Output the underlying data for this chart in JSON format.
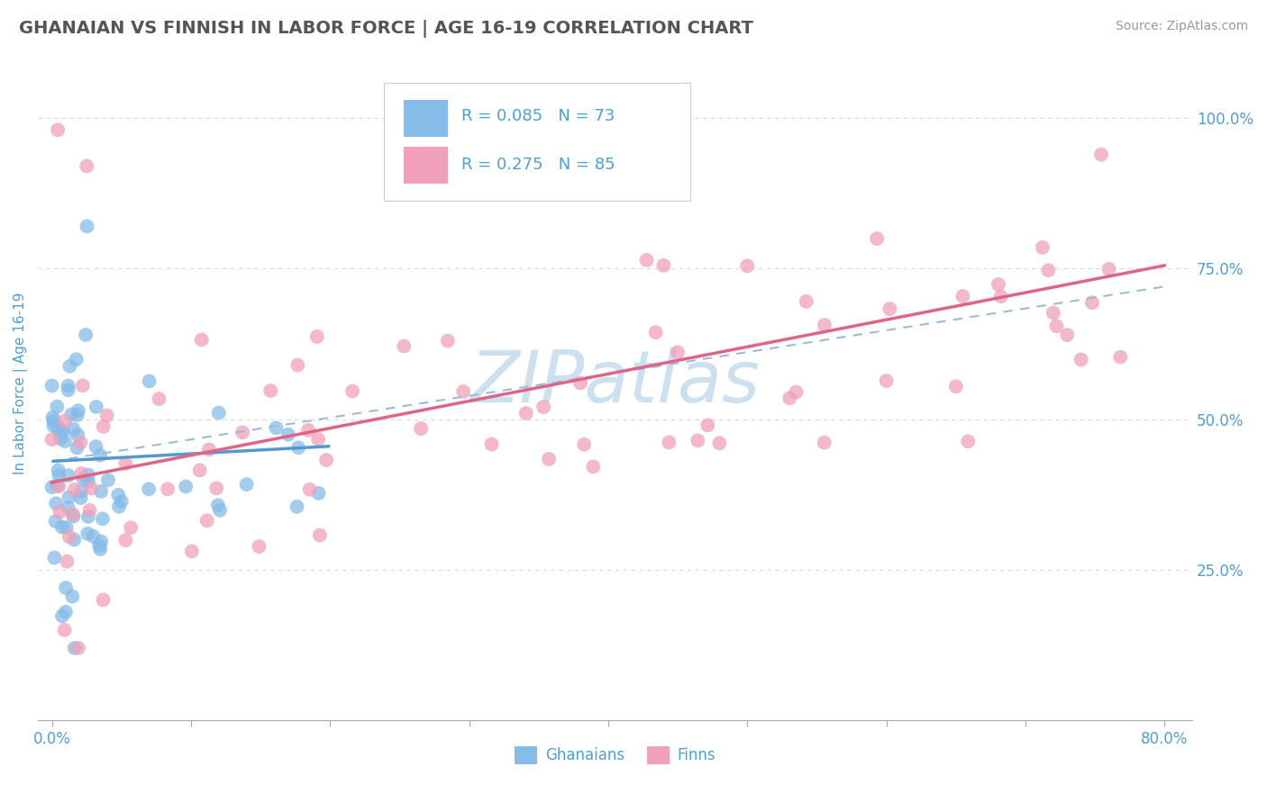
{
  "title": "GHANAIAN VS FINNISH IN LABOR FORCE | AGE 16-19 CORRELATION CHART",
  "source_text": "Source: ZipAtlas.com",
  "ylabel": "In Labor Force | Age 16-19",
  "xticklabels_ends": [
    "0.0%",
    "80.0%"
  ],
  "xtick_vals": [
    0.0,
    0.1,
    0.2,
    0.3,
    0.4,
    0.5,
    0.6,
    0.7,
    0.8
  ],
  "yticklabels_right": [
    "25.0%",
    "50.0%",
    "75.0%",
    "100.0%"
  ],
  "ytick_vals_right": [
    0.25,
    0.5,
    0.75,
    1.0
  ],
  "xlim": [
    -0.01,
    0.82
  ],
  "ylim": [
    0.0,
    1.12
  ],
  "title_fontsize": 14,
  "title_color": "#555555",
  "axis_label_color": "#4d9fd6",
  "tick_color": "#4d9fd6",
  "grid_color": "#d8d8d8",
  "watermark_text": "ZIPatlas",
  "watermark_color": "#cce0f0",
  "legend_R_ghanaian": "R = 0.085",
  "legend_N_ghanaian": "N = 73",
  "legend_R_finn": "R = 0.275",
  "legend_N_finn": "N = 85",
  "scatter_ghanaian_color": "#85bce8",
  "scatter_finn_color": "#f0a0b8",
  "trend_ghanaian_color": "#5599cc",
  "trend_finn_color": "#dd6688",
  "trend_dashed_color": "#99bbdd",
  "legend_text_color": "#4d9fd6",
  "gh_trend_x0": 0.0,
  "gh_trend_x1": 0.2,
  "gh_trend_y0": 0.43,
  "gh_trend_y1": 0.455,
  "fi_trend_x0": 0.0,
  "fi_trend_x1": 0.8,
  "fi_trend_y0": 0.395,
  "fi_trend_y1": 0.755,
  "dash_trend_x0": 0.0,
  "dash_trend_x1": 0.8,
  "dash_trend_y0": 0.43,
  "dash_trend_y1": 0.72
}
